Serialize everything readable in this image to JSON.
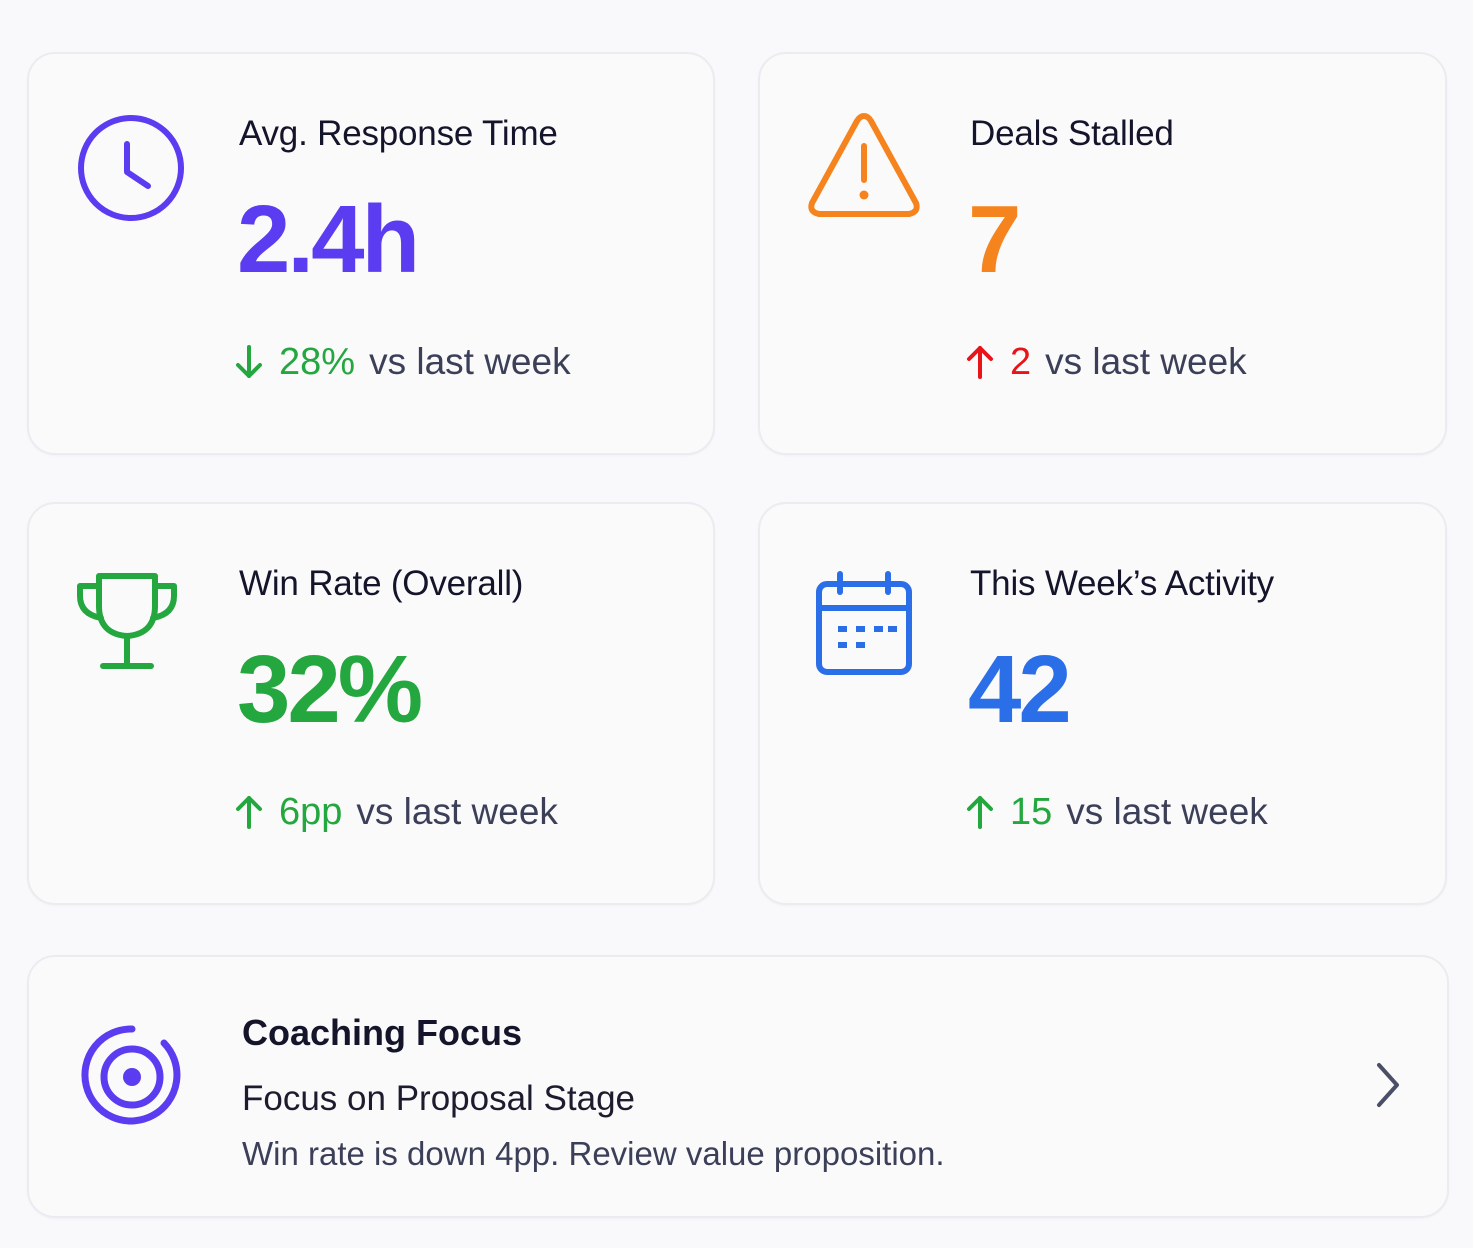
{
  "colors": {
    "purple": "#5b3cf0",
    "orange": "#f5841f",
    "green": "#24a73f",
    "red": "#e8141a",
    "blue": "#2a6ee8",
    "muted_text": "#3b3f58",
    "title_text": "#14142a"
  },
  "metrics": [
    {
      "title": "Avg. Response Time",
      "value": "2.4h",
      "icon": "clock-icon",
      "delta_direction": "down",
      "delta_value": "28%",
      "delta_suffix": "vs last week"
    },
    {
      "title": "Deals Stalled",
      "value": "7",
      "icon": "warning-icon",
      "delta_direction": "up",
      "delta_value": "2",
      "delta_suffix": "vs last week"
    },
    {
      "title": "Win Rate (Overall)",
      "value": "32%",
      "icon": "trophy-icon",
      "delta_direction": "up",
      "delta_value": "6pp",
      "delta_suffix": "vs last week"
    },
    {
      "title": "This Week’s Activity",
      "value": "42",
      "icon": "calendar-icon",
      "delta_direction": "up",
      "delta_value": "15",
      "delta_suffix": "vs last week"
    }
  ],
  "coaching": {
    "title": "Coaching Focus",
    "heading": "Focus on Proposal Stage",
    "body": "Win rate is down 4pp. Review value proposition.",
    "icon": "target-icon",
    "action_icon": "chevron-right-icon"
  }
}
